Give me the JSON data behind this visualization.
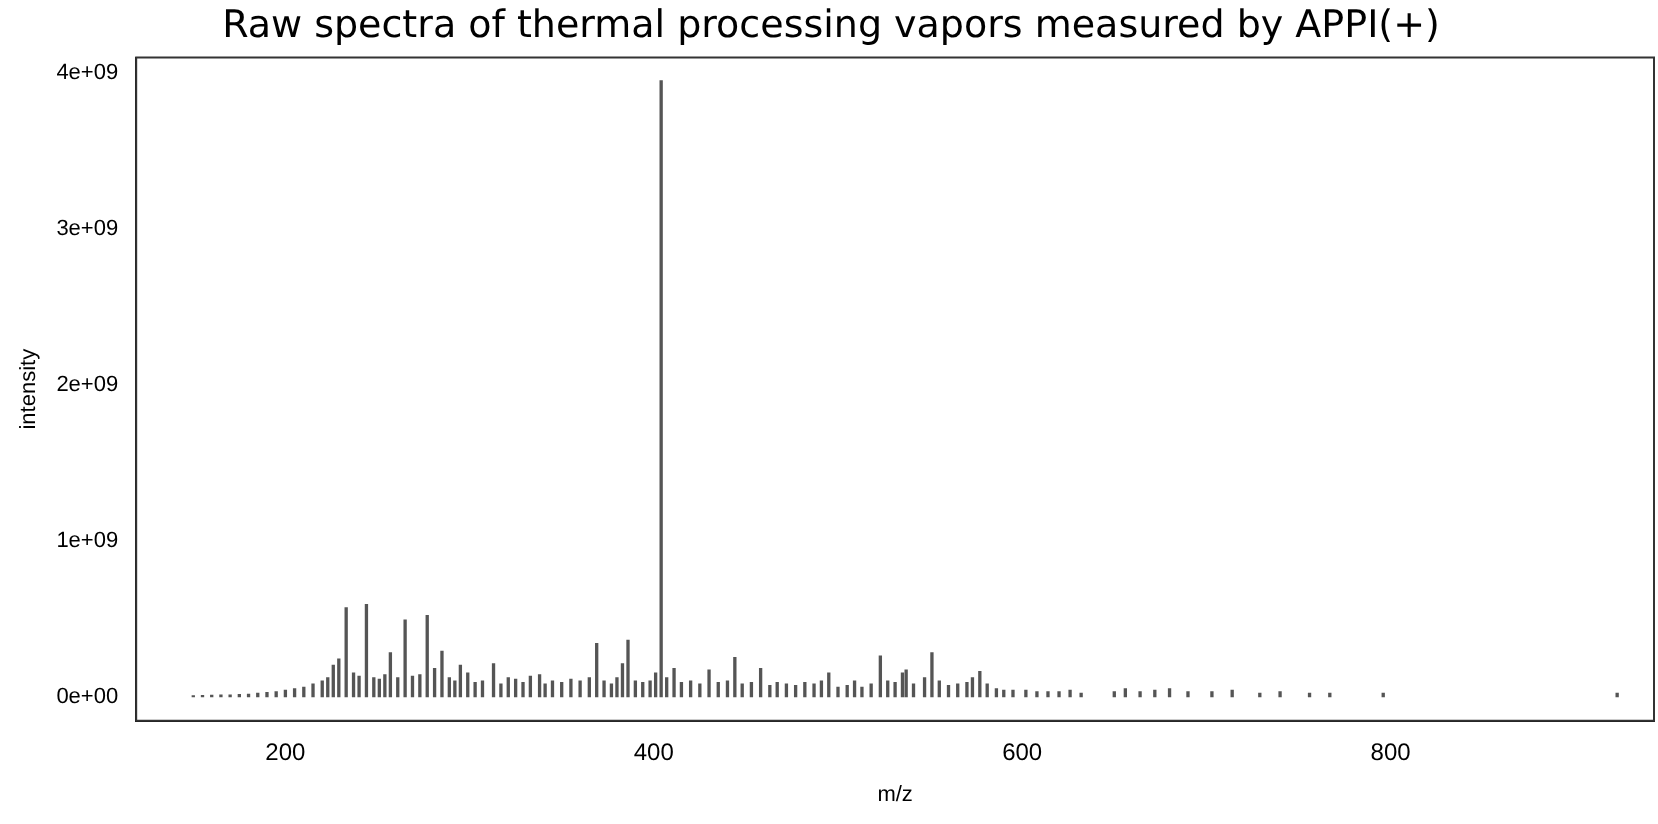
{
  "chart_data": {
    "type": "bar",
    "title": "Raw spectra of thermal processing vapors measured by APPI(+)",
    "xlabel": "m/z",
    "ylabel": "intensity",
    "color": "#555555",
    "x": [
      150,
      155,
      160,
      165,
      170,
      175,
      180,
      185,
      190,
      195,
      200,
      205,
      210,
      215,
      220,
      223,
      226,
      229,
      233,
      237,
      240,
      244,
      248,
      251,
      254,
      257,
      261,
      265,
      269,
      273,
      277,
      281,
      285,
      289,
      292,
      295,
      299,
      303,
      307,
      313,
      317,
      321,
      325,
      329,
      333,
      338,
      341,
      345,
      350,
      355,
      360,
      365,
      369,
      373,
      377,
      380,
      383,
      386,
      390,
      394,
      398,
      401,
      404,
      407,
      411,
      415,
      420,
      425,
      430,
      435,
      440,
      444,
      448,
      453,
      458,
      463,
      467,
      472,
      477,
      482,
      487,
      491,
      495,
      500,
      505,
      509,
      513,
      518,
      523,
      527,
      531,
      535,
      537,
      541,
      547,
      551,
      555,
      560,
      565,
      570,
      573,
      577,
      581,
      586,
      590,
      595,
      602,
      608,
      614,
      620,
      626,
      632,
      650,
      656,
      664,
      672,
      680,
      690,
      703,
      714,
      729,
      740,
      756,
      767,
      796,
      923
    ],
    "values": [
      5000000.0,
      6000000.0,
      8000000.0,
      10000000.0,
      10000000.0,
      12000000.0,
      15000000.0,
      20000000.0,
      25000000.0,
      30000000.0,
      40000000.0,
      50000000.0,
      60000000.0,
      80000000.0,
      100000000.0,
      120000000.0,
      200000000.0,
      240000000.0,
      570000000.0,
      150000000.0,
      130000000.0,
      590000000.0,
      120000000.0,
      110000000.0,
      140000000.0,
      280000000.0,
      120000000.0,
      490000000.0,
      130000000.0,
      140000000.0,
      520000000.0,
      180000000.0,
      290000000.0,
      120000000.0,
      100000000.0,
      200000000.0,
      150000000.0,
      90000000.0,
      100000000.0,
      210000000.0,
      80000000.0,
      120000000.0,
      110000000.0,
      90000000.0,
      130000000.0,
      140000000.0,
      80000000.0,
      100000000.0,
      90000000.0,
      110000000.0,
      100000000.0,
      120000000.0,
      340000000.0,
      100000000.0,
      80000000.0,
      120000000.0,
      210000000.0,
      360000000.0,
      100000000.0,
      90000000.0,
      100000000.0,
      150000000.0,
      3950000000.0,
      120000000.0,
      180000000.0,
      90000000.0,
      100000000.0,
      80000000.0,
      170000000.0,
      90000000.0,
      100000000.0,
      250000000.0,
      80000000.0,
      90000000.0,
      180000000.0,
      70000000.0,
      90000000.0,
      80000000.0,
      70000000.0,
      90000000.0,
      80000000.0,
      100000000.0,
      150000000.0,
      60000000.0,
      70000000.0,
      100000000.0,
      60000000.0,
      80000000.0,
      260000000.0,
      100000000.0,
      90000000.0,
      150000000.0,
      170000000.0,
      80000000.0,
      120000000.0,
      280000000.0,
      100000000.0,
      70000000.0,
      80000000.0,
      90000000.0,
      120000000.0,
      160000000.0,
      80000000.0,
      50000000.0,
      40000000.0,
      40000000.0,
      40000000.0,
      30000000.0,
      30000000.0,
      30000000.0,
      40000000.0,
      20000000.0,
      30000000.0,
      50000000.0,
      30000000.0,
      40000000.0,
      50000000.0,
      30000000.0,
      30000000.0,
      40000000.0,
      20000000.0,
      30000000.0,
      20000000.0,
      20000000.0,
      20000000.0,
      20000000.0
    ],
    "xlim": [
      119,
      943
    ],
    "xticks": [
      200,
      400,
      600,
      800
    ],
    "ylim": [
      -155000000.0,
      4100000000.0
    ],
    "yticks": [
      {
        "value": 0,
        "label": "0e+00"
      },
      {
        "value": 1000000000.0,
        "label": "1e+09"
      },
      {
        "value": 2000000000.0,
        "label": "2e+09"
      },
      {
        "value": 3000000000.0,
        "label": "3e+09"
      },
      {
        "value": 4000000000.0,
        "label": "4e+09"
      }
    ]
  }
}
